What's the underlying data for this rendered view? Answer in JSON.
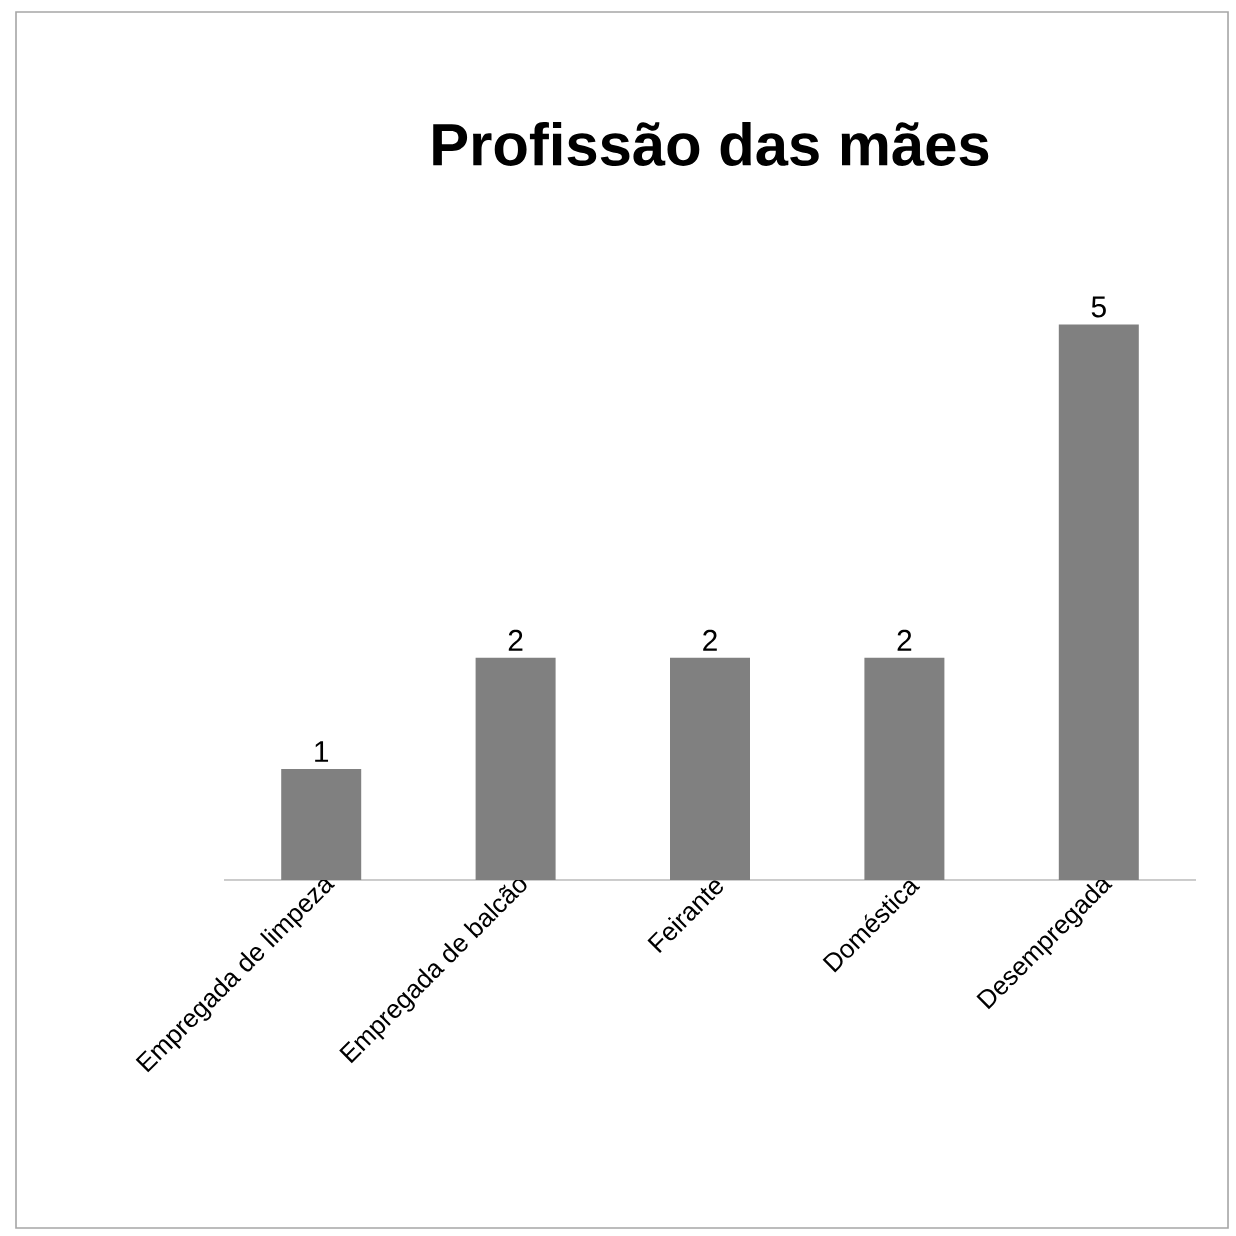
{
  "chart_data": {
    "type": "bar",
    "title": "Profissão das mães",
    "categories": [
      "Empregada de limpeza",
      "Empregada de balcão",
      "Feirante",
      "Doméstica",
      "Desempregada"
    ],
    "values": [
      1,
      2,
      2,
      2,
      5
    ],
    "color": "#808080",
    "data_labels": true,
    "grid": false
  }
}
